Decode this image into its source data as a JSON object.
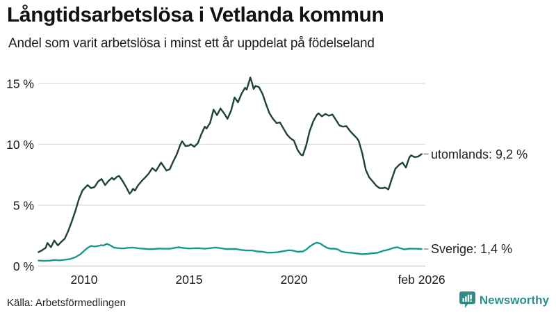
{
  "chart_data": {
    "type": "line",
    "title": "Långtidsarbetslösa i Vetlanda kommun",
    "subtitle": "Andel som varit arbetslösa i minst ett år uppdelat på födelseland",
    "xlabel": "",
    "ylabel": "",
    "ylim": [
      0,
      15.8
    ],
    "xlim": [
      2007.8,
      2026.3
    ],
    "grid": true,
    "legend_position": "right-end-labels",
    "y_ticks": [
      {
        "v": 0,
        "label": "0 %"
      },
      {
        "v": 5,
        "label": "5 %"
      },
      {
        "v": 10,
        "label": "10 %"
      },
      {
        "v": 15,
        "label": "15 %"
      }
    ],
    "x_ticks": [
      {
        "t": 2010,
        "label": "2010"
      },
      {
        "t": 2015,
        "label": "2015"
      },
      {
        "t": 2020,
        "label": "2020"
      },
      {
        "t": 2026.08,
        "label": "feb 2026"
      }
    ],
    "series": [
      {
        "name": "utomlands",
        "end_label": "utomlands: 9,2 %",
        "end_value_pct": 9.2,
        "color": "#1e4239",
        "points": [
          [
            2007.83,
            1.15
          ],
          [
            2008.0,
            1.3
          ],
          [
            2008.17,
            1.5
          ],
          [
            2008.25,
            1.9
          ],
          [
            2008.42,
            1.55
          ],
          [
            2008.58,
            2.1
          ],
          [
            2008.75,
            1.7
          ],
          [
            2008.92,
            2.0
          ],
          [
            2009.08,
            2.25
          ],
          [
            2009.25,
            2.9
          ],
          [
            2009.42,
            3.7
          ],
          [
            2009.58,
            4.5
          ],
          [
            2009.75,
            5.5
          ],
          [
            2009.92,
            6.2
          ],
          [
            2010.08,
            6.5
          ],
          [
            2010.17,
            6.65
          ],
          [
            2010.33,
            6.4
          ],
          [
            2010.5,
            6.5
          ],
          [
            2010.67,
            6.95
          ],
          [
            2010.83,
            7.15
          ],
          [
            2010.92,
            6.9
          ],
          [
            2011.0,
            6.65
          ],
          [
            2011.17,
            7.0
          ],
          [
            2011.33,
            7.25
          ],
          [
            2011.42,
            7.1
          ],
          [
            2011.58,
            7.35
          ],
          [
            2011.67,
            7.4
          ],
          [
            2011.83,
            7.0
          ],
          [
            2012.0,
            6.5
          ],
          [
            2012.17,
            5.95
          ],
          [
            2012.25,
            6.1
          ],
          [
            2012.33,
            6.35
          ],
          [
            2012.42,
            6.2
          ],
          [
            2012.58,
            6.65
          ],
          [
            2012.75,
            7.0
          ],
          [
            2012.92,
            7.3
          ],
          [
            2013.08,
            7.6
          ],
          [
            2013.25,
            8.05
          ],
          [
            2013.42,
            7.8
          ],
          [
            2013.58,
            8.25
          ],
          [
            2013.67,
            8.5
          ],
          [
            2013.83,
            8.1
          ],
          [
            2013.92,
            7.85
          ],
          [
            2014.08,
            7.95
          ],
          [
            2014.25,
            8.6
          ],
          [
            2014.42,
            9.2
          ],
          [
            2014.58,
            9.95
          ],
          [
            2014.67,
            10.25
          ],
          [
            2014.83,
            9.85
          ],
          [
            2015.0,
            9.9
          ],
          [
            2015.08,
            10.0
          ],
          [
            2015.25,
            9.8
          ],
          [
            2015.42,
            10.1
          ],
          [
            2015.58,
            10.8
          ],
          [
            2015.75,
            11.45
          ],
          [
            2015.83,
            11.3
          ],
          [
            2016.0,
            11.75
          ],
          [
            2016.17,
            12.85
          ],
          [
            2016.33,
            12.4
          ],
          [
            2016.5,
            12.95
          ],
          [
            2016.67,
            12.55
          ],
          [
            2016.83,
            12.1
          ],
          [
            2017.0,
            12.75
          ],
          [
            2017.17,
            13.85
          ],
          [
            2017.33,
            13.45
          ],
          [
            2017.5,
            14.15
          ],
          [
            2017.67,
            14.65
          ],
          [
            2017.75,
            14.5
          ],
          [
            2017.92,
            15.5
          ],
          [
            2018.0,
            15.05
          ],
          [
            2018.08,
            14.55
          ],
          [
            2018.17,
            14.8
          ],
          [
            2018.33,
            14.7
          ],
          [
            2018.5,
            14.15
          ],
          [
            2018.67,
            13.3
          ],
          [
            2018.83,
            12.55
          ],
          [
            2019.0,
            12.1
          ],
          [
            2019.17,
            11.75
          ],
          [
            2019.33,
            11.8
          ],
          [
            2019.5,
            11.3
          ],
          [
            2019.67,
            10.8
          ],
          [
            2019.83,
            10.5
          ],
          [
            2020.0,
            10.3
          ],
          [
            2020.17,
            9.55
          ],
          [
            2020.33,
            9.15
          ],
          [
            2020.42,
            9.1
          ],
          [
            2020.58,
            9.9
          ],
          [
            2020.75,
            11.1
          ],
          [
            2020.92,
            11.9
          ],
          [
            2021.08,
            12.4
          ],
          [
            2021.17,
            12.55
          ],
          [
            2021.33,
            12.3
          ],
          [
            2021.5,
            12.5
          ],
          [
            2021.67,
            12.35
          ],
          [
            2021.83,
            12.45
          ],
          [
            2022.0,
            12.0
          ],
          [
            2022.17,
            11.55
          ],
          [
            2022.33,
            11.45
          ],
          [
            2022.5,
            11.5
          ],
          [
            2022.67,
            11.1
          ],
          [
            2022.83,
            10.8
          ],
          [
            2023.0,
            10.5
          ],
          [
            2023.08,
            10.3
          ],
          [
            2023.25,
            9.3
          ],
          [
            2023.42,
            7.9
          ],
          [
            2023.58,
            7.3
          ],
          [
            2023.75,
            6.95
          ],
          [
            2023.92,
            6.6
          ],
          [
            2024.08,
            6.4
          ],
          [
            2024.25,
            6.4
          ],
          [
            2024.33,
            6.45
          ],
          [
            2024.5,
            6.3
          ],
          [
            2024.67,
            7.2
          ],
          [
            2024.83,
            8.0
          ],
          [
            2025.0,
            8.3
          ],
          [
            2025.17,
            8.5
          ],
          [
            2025.33,
            8.1
          ],
          [
            2025.5,
            8.95
          ],
          [
            2025.58,
            9.1
          ],
          [
            2025.75,
            8.95
          ],
          [
            2025.92,
            9.0
          ],
          [
            2026.08,
            9.2
          ]
        ]
      },
      {
        "name": "Sverige",
        "end_label": "Sverige: 1,4 %",
        "end_value_pct": 1.4,
        "color": "#17998a",
        "points": [
          [
            2007.83,
            0.45
          ],
          [
            2008.08,
            0.42
          ],
          [
            2008.33,
            0.44
          ],
          [
            2008.58,
            0.5
          ],
          [
            2008.83,
            0.47
          ],
          [
            2009.08,
            0.52
          ],
          [
            2009.33,
            0.58
          ],
          [
            2009.58,
            0.72
          ],
          [
            2009.83,
            0.98
          ],
          [
            2010.0,
            1.25
          ],
          [
            2010.17,
            1.5
          ],
          [
            2010.33,
            1.65
          ],
          [
            2010.5,
            1.6
          ],
          [
            2010.67,
            1.65
          ],
          [
            2010.83,
            1.72
          ],
          [
            2010.92,
            1.68
          ],
          [
            2011.08,
            1.83
          ],
          [
            2011.25,
            1.7
          ],
          [
            2011.42,
            1.52
          ],
          [
            2011.58,
            1.48
          ],
          [
            2011.75,
            1.45
          ],
          [
            2011.92,
            1.45
          ],
          [
            2012.08,
            1.5
          ],
          [
            2012.33,
            1.52
          ],
          [
            2012.58,
            1.46
          ],
          [
            2012.83,
            1.42
          ],
          [
            2013.08,
            1.39
          ],
          [
            2013.33,
            1.4
          ],
          [
            2013.58,
            1.44
          ],
          [
            2013.83,
            1.42
          ],
          [
            2014.08,
            1.42
          ],
          [
            2014.33,
            1.5
          ],
          [
            2014.5,
            1.55
          ],
          [
            2014.75,
            1.48
          ],
          [
            2015.0,
            1.44
          ],
          [
            2015.25,
            1.46
          ],
          [
            2015.5,
            1.47
          ],
          [
            2015.75,
            1.42
          ],
          [
            2016.0,
            1.47
          ],
          [
            2016.25,
            1.52
          ],
          [
            2016.5,
            1.47
          ],
          [
            2016.75,
            1.4
          ],
          [
            2017.0,
            1.4
          ],
          [
            2017.25,
            1.4
          ],
          [
            2017.5,
            1.32
          ],
          [
            2017.75,
            1.28
          ],
          [
            2018.0,
            1.28
          ],
          [
            2018.25,
            1.2
          ],
          [
            2018.5,
            1.17
          ],
          [
            2018.75,
            1.1
          ],
          [
            2019.0,
            1.11
          ],
          [
            2019.25,
            1.15
          ],
          [
            2019.5,
            1.22
          ],
          [
            2019.75,
            1.3
          ],
          [
            2019.92,
            1.28
          ],
          [
            2020.17,
            1.17
          ],
          [
            2020.42,
            1.2
          ],
          [
            2020.58,
            1.35
          ],
          [
            2020.75,
            1.6
          ],
          [
            2020.92,
            1.8
          ],
          [
            2021.08,
            1.92
          ],
          [
            2021.25,
            1.85
          ],
          [
            2021.42,
            1.65
          ],
          [
            2021.58,
            1.5
          ],
          [
            2021.75,
            1.42
          ],
          [
            2021.92,
            1.43
          ],
          [
            2022.08,
            1.38
          ],
          [
            2022.25,
            1.2
          ],
          [
            2022.5,
            1.12
          ],
          [
            2022.75,
            1.08
          ],
          [
            2023.0,
            1.03
          ],
          [
            2023.25,
            0.98
          ],
          [
            2023.5,
            1.0
          ],
          [
            2023.75,
            1.05
          ],
          [
            2024.0,
            1.1
          ],
          [
            2024.25,
            1.25
          ],
          [
            2024.5,
            1.35
          ],
          [
            2024.75,
            1.5
          ],
          [
            2024.92,
            1.55
          ],
          [
            2025.08,
            1.45
          ],
          [
            2025.25,
            1.38
          ],
          [
            2025.5,
            1.43
          ],
          [
            2025.75,
            1.42
          ],
          [
            2026.08,
            1.4
          ]
        ]
      }
    ]
  },
  "source": "Källa: Arbetsförmedlingen",
  "branding": {
    "name": "Newsworthy",
    "icon": "newsworthy-speech-bubble-barchart-icon"
  },
  "colors": {
    "utomlands_line": "#1e4239",
    "sverige_line": "#17998a",
    "grid": "#dcdcdc",
    "zero_line": "#c6c6c6",
    "tick_text": "#1a1a1a",
    "label_text": "#222222",
    "connector": "#999999",
    "brand": "#2f8e87",
    "title": "#111111"
  }
}
